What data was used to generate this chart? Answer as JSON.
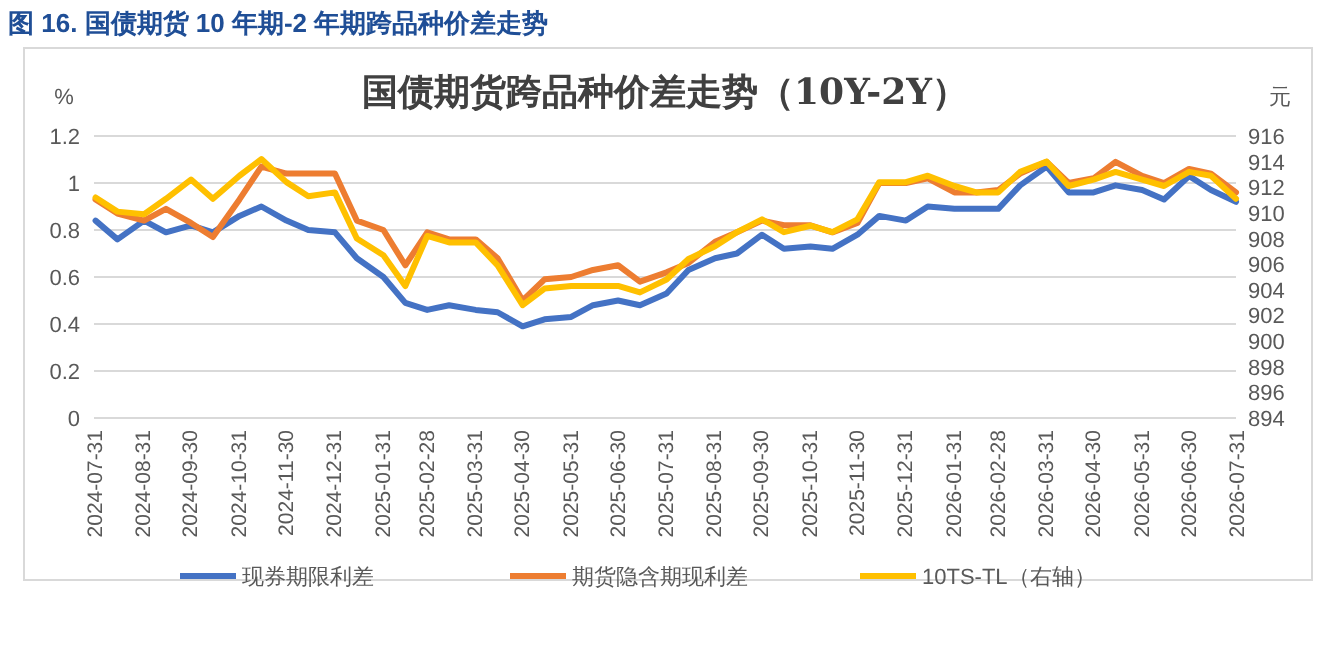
{
  "chart_data": {
    "type": "line",
    "title": "国债期货跨品种价差走势（10Y-2Y）",
    "annotations": [
      "图 16. 国债期货 10 年期-2 年期跨品种价差走势"
    ],
    "ylabel": "%",
    "y2label": "元",
    "grid": "y",
    "legend": "bottom",
    "xlim": [
      "2024-07-31",
      "2026-07-31"
    ],
    "xticks": [
      "2024-07-31",
      "2024-08-31",
      "2024-09-30",
      "2024-10-31",
      "2024-11-30",
      "2024-12-31",
      "2025-01-31",
      "2025-02-28",
      "2025-03-31",
      "2025-04-30",
      "2025-05-31",
      "2025-06-30",
      "2025-07-31",
      "2025-08-31",
      "2025-09-30",
      "2025-10-31",
      "2025-11-30",
      "2025-12-31",
      "2026-01-31",
      "2026-02-28",
      "2026-03-31",
      "2026-04-30",
      "2026-05-31",
      "2026-06-30",
      "2026-07-31"
    ],
    "ylim": [
      0,
      1.2
    ],
    "yticks": [
      0,
      0.2,
      0.4,
      0.6,
      0.8,
      1,
      1.2
    ],
    "y2lim": [
      894,
      916
    ],
    "y2ticks": [
      894,
      896,
      898,
      900,
      902,
      904,
      906,
      908,
      910,
      912,
      914,
      916
    ],
    "x": [
      "2024-08-01",
      "2024-08-15",
      "2024-09-01",
      "2024-09-15",
      "2024-10-01",
      "2024-10-15",
      "2024-11-01",
      "2024-11-15",
      "2024-12-01",
      "2024-12-15",
      "2025-01-01",
      "2025-01-15",
      "2025-02-01",
      "2025-02-15",
      "2025-03-01",
      "2025-03-15",
      "2025-04-01",
      "2025-04-15",
      "2025-05-01",
      "2025-05-15",
      "2025-06-01",
      "2025-06-15",
      "2025-07-01",
      "2025-07-15",
      "2025-08-01",
      "2025-08-15",
      "2025-09-01",
      "2025-09-15",
      "2025-10-01",
      "2025-10-15",
      "2025-11-01",
      "2025-11-15",
      "2025-12-01",
      "2025-12-15",
      "2026-01-01",
      "2026-01-15",
      "2026-02-01",
      "2026-02-15",
      "2026-03-01",
      "2026-03-15",
      "2026-04-01",
      "2026-04-15",
      "2026-05-01",
      "2026-05-15",
      "2026-06-01",
      "2026-06-15",
      "2026-07-01",
      "2026-07-15",
      "2026-07-31"
    ],
    "series": [
      {
        "name": "现券期限利差",
        "color": "#4472c4",
        "values": [
          0.84,
          0.76,
          0.84,
          0.79,
          0.82,
          0.79,
          0.86,
          0.9,
          0.84,
          0.8,
          0.79,
          0.68,
          0.6,
          0.49,
          0.46,
          0.48,
          0.46,
          0.45,
          0.39,
          0.42,
          0.43,
          0.48,
          0.5,
          0.48,
          0.53,
          0.63,
          0.68,
          0.7,
          0.78,
          0.72,
          0.73,
          0.72,
          0.78,
          0.86,
          0.84,
          0.9,
          0.89,
          0.89,
          0.89,
          0.99,
          1.07,
          0.96,
          0.96,
          0.99,
          0.97,
          0.93,
          1.03,
          0.97,
          0.92
        ]
      },
      {
        "name": "期货隐含期现利差",
        "color": "#ed7d31",
        "values": [
          0.93,
          0.87,
          0.84,
          0.89,
          0.83,
          0.77,
          0.93,
          1.07,
          1.04,
          1.04,
          1.04,
          0.84,
          0.8,
          0.65,
          0.79,
          0.76,
          0.76,
          0.68,
          0.5,
          0.59,
          0.6,
          0.63,
          0.65,
          0.58,
          0.62,
          0.66,
          0.75,
          0.79,
          0.84,
          0.82,
          0.82,
          0.79,
          0.83,
          1,
          1,
          1.02,
          0.96,
          0.96,
          0.97,
          1.04,
          1.09,
          1,
          1.02,
          1.09,
          1.03,
          1,
          1.06,
          1.04,
          0.96
        ]
      },
      {
        "name": "10TS-TL（右轴）",
        "color": "#ffc000",
        "axis": "y2",
        "values": [
          911.2,
          910.1,
          909.9,
          911.1,
          912.6,
          911.1,
          912.9,
          914.2,
          912.4,
          911.3,
          911.6,
          908,
          906.7,
          904.3,
          908.2,
          907.7,
          907.7,
          905.9,
          902.8,
          904.1,
          904.3,
          904.3,
          904.3,
          903.8,
          904.8,
          906.4,
          907.4,
          908.5,
          909.5,
          908.5,
          909,
          908.5,
          909.5,
          912.4,
          912.4,
          912.9,
          912.1,
          911.6,
          911.6,
          913.2,
          914,
          912.1,
          912.6,
          913.2,
          912.6,
          912.1,
          913.2,
          912.9,
          911.1
        ]
      }
    ]
  }
}
